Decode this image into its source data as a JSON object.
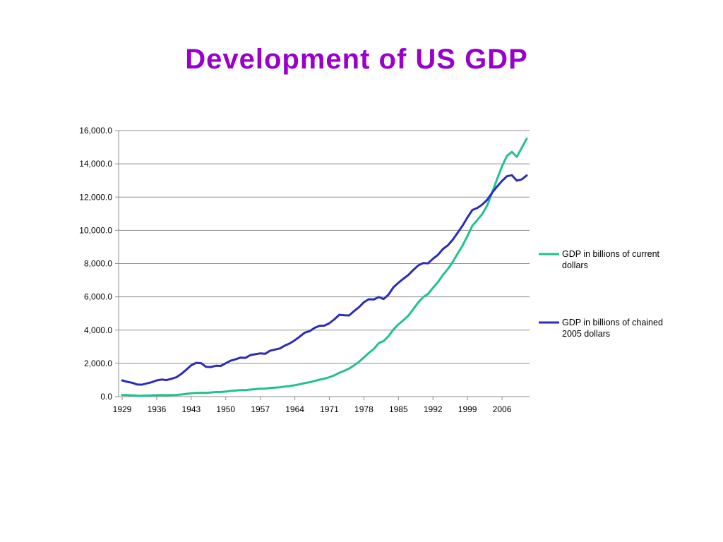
{
  "slide": {
    "title": "Development of US GDP"
  },
  "chart_data": {
    "type": "line",
    "title": "",
    "xlabel": "",
    "ylabel": "",
    "ylim": [
      0,
      16000
    ],
    "y_ticks": [
      "0.0",
      "2,000.0",
      "4,000.0",
      "6,000.0",
      "8,000.0",
      "10,000.0",
      "12,000.0",
      "14,000.0",
      "16,000.0"
    ],
    "x_ticks": [
      "1929",
      "1936",
      "1943",
      "1950",
      "1957",
      "1964",
      "1971",
      "1978",
      "1985",
      "1992",
      "1999",
      "2006"
    ],
    "grid": "horizontal",
    "legend_position": "right",
    "x": [
      1929,
      1930,
      1931,
      1932,
      1933,
      1934,
      1935,
      1936,
      1937,
      1938,
      1939,
      1940,
      1941,
      1942,
      1943,
      1944,
      1945,
      1946,
      1947,
      1948,
      1949,
      1950,
      1951,
      1952,
      1953,
      1954,
      1955,
      1956,
      1957,
      1958,
      1959,
      1960,
      1961,
      1962,
      1963,
      1964,
      1965,
      1966,
      1967,
      1968,
      1969,
      1970,
      1971,
      1972,
      1973,
      1974,
      1975,
      1976,
      1977,
      1978,
      1979,
      1980,
      1981,
      1982,
      1983,
      1984,
      1985,
      1986,
      1987,
      1988,
      1989,
      1990,
      1991,
      1992,
      1993,
      1994,
      1995,
      1996,
      1997,
      1998,
      1999,
      2000,
      2001,
      2002,
      2003,
      2004,
      2005,
      2006,
      2007,
      2008,
      2009,
      2010,
      2011
    ],
    "series": [
      {
        "name": "GDP in billions of current dollars",
        "color": "#1fc28f",
        "values": [
          103,
          92,
          77,
          60,
          57,
          66,
          74,
          84,
          93,
          87,
          93,
          102,
          129,
          166,
          203,
          224,
          228,
          227,
          250,
          276,
          279,
          300,
          347,
          367,
          389,
          391,
          425,
          449,
          474,
          482,
          522,
          543,
          563,
          605,
          638,
          686,
          744,
          815,
          862,
          943,
          1020,
          1076,
          1168,
          1283,
          1429,
          1549,
          1689,
          1878,
          2086,
          2357,
          2632,
          2863,
          3211,
          3345,
          3638,
          4041,
          4347,
          4590,
          4870,
          5253,
          5658,
          5980,
          6174,
          6539,
          6879,
          7309,
          7664,
          8100,
          8609,
          9089,
          9661,
          10285,
          10622,
          10978,
          11511,
          12275,
          13094,
          13856,
          14478,
          14719,
          14419,
          14964,
          15518
        ]
      },
      {
        "name": "GDP in billions of chained 2005 dollars",
        "color": "#2c2cb8",
        "values": [
          977,
          893,
          835,
          731,
          716,
          794,
          865,
          977,
          1027,
          993,
          1072,
          1166,
          1367,
          1617,
          1884,
          2034,
          2013,
          1793,
          1779,
          1855,
          1845,
          2006,
          2161,
          2244,
          2348,
          2331,
          2501,
          2550,
          2601,
          2578,
          2763,
          2831,
          2897,
          3072,
          3206,
          3392,
          3610,
          3846,
          3939,
          4133,
          4262,
          4270,
          4413,
          4648,
          4917,
          4890,
          4880,
          5141,
          5377,
          5677,
          5855,
          5839,
          5988,
          5871,
          6136,
          6577,
          6849,
          7087,
          7313,
          7614,
          7886,
          8034,
          8015,
          8287,
          8523,
          8871,
          9094,
          9434,
          9854,
          10283,
          10780,
          11226,
          11347,
          11553,
          11841,
          12264,
          12638,
          12976,
          13254,
          13312,
          12988,
          13063,
          13299
        ]
      }
    ]
  }
}
